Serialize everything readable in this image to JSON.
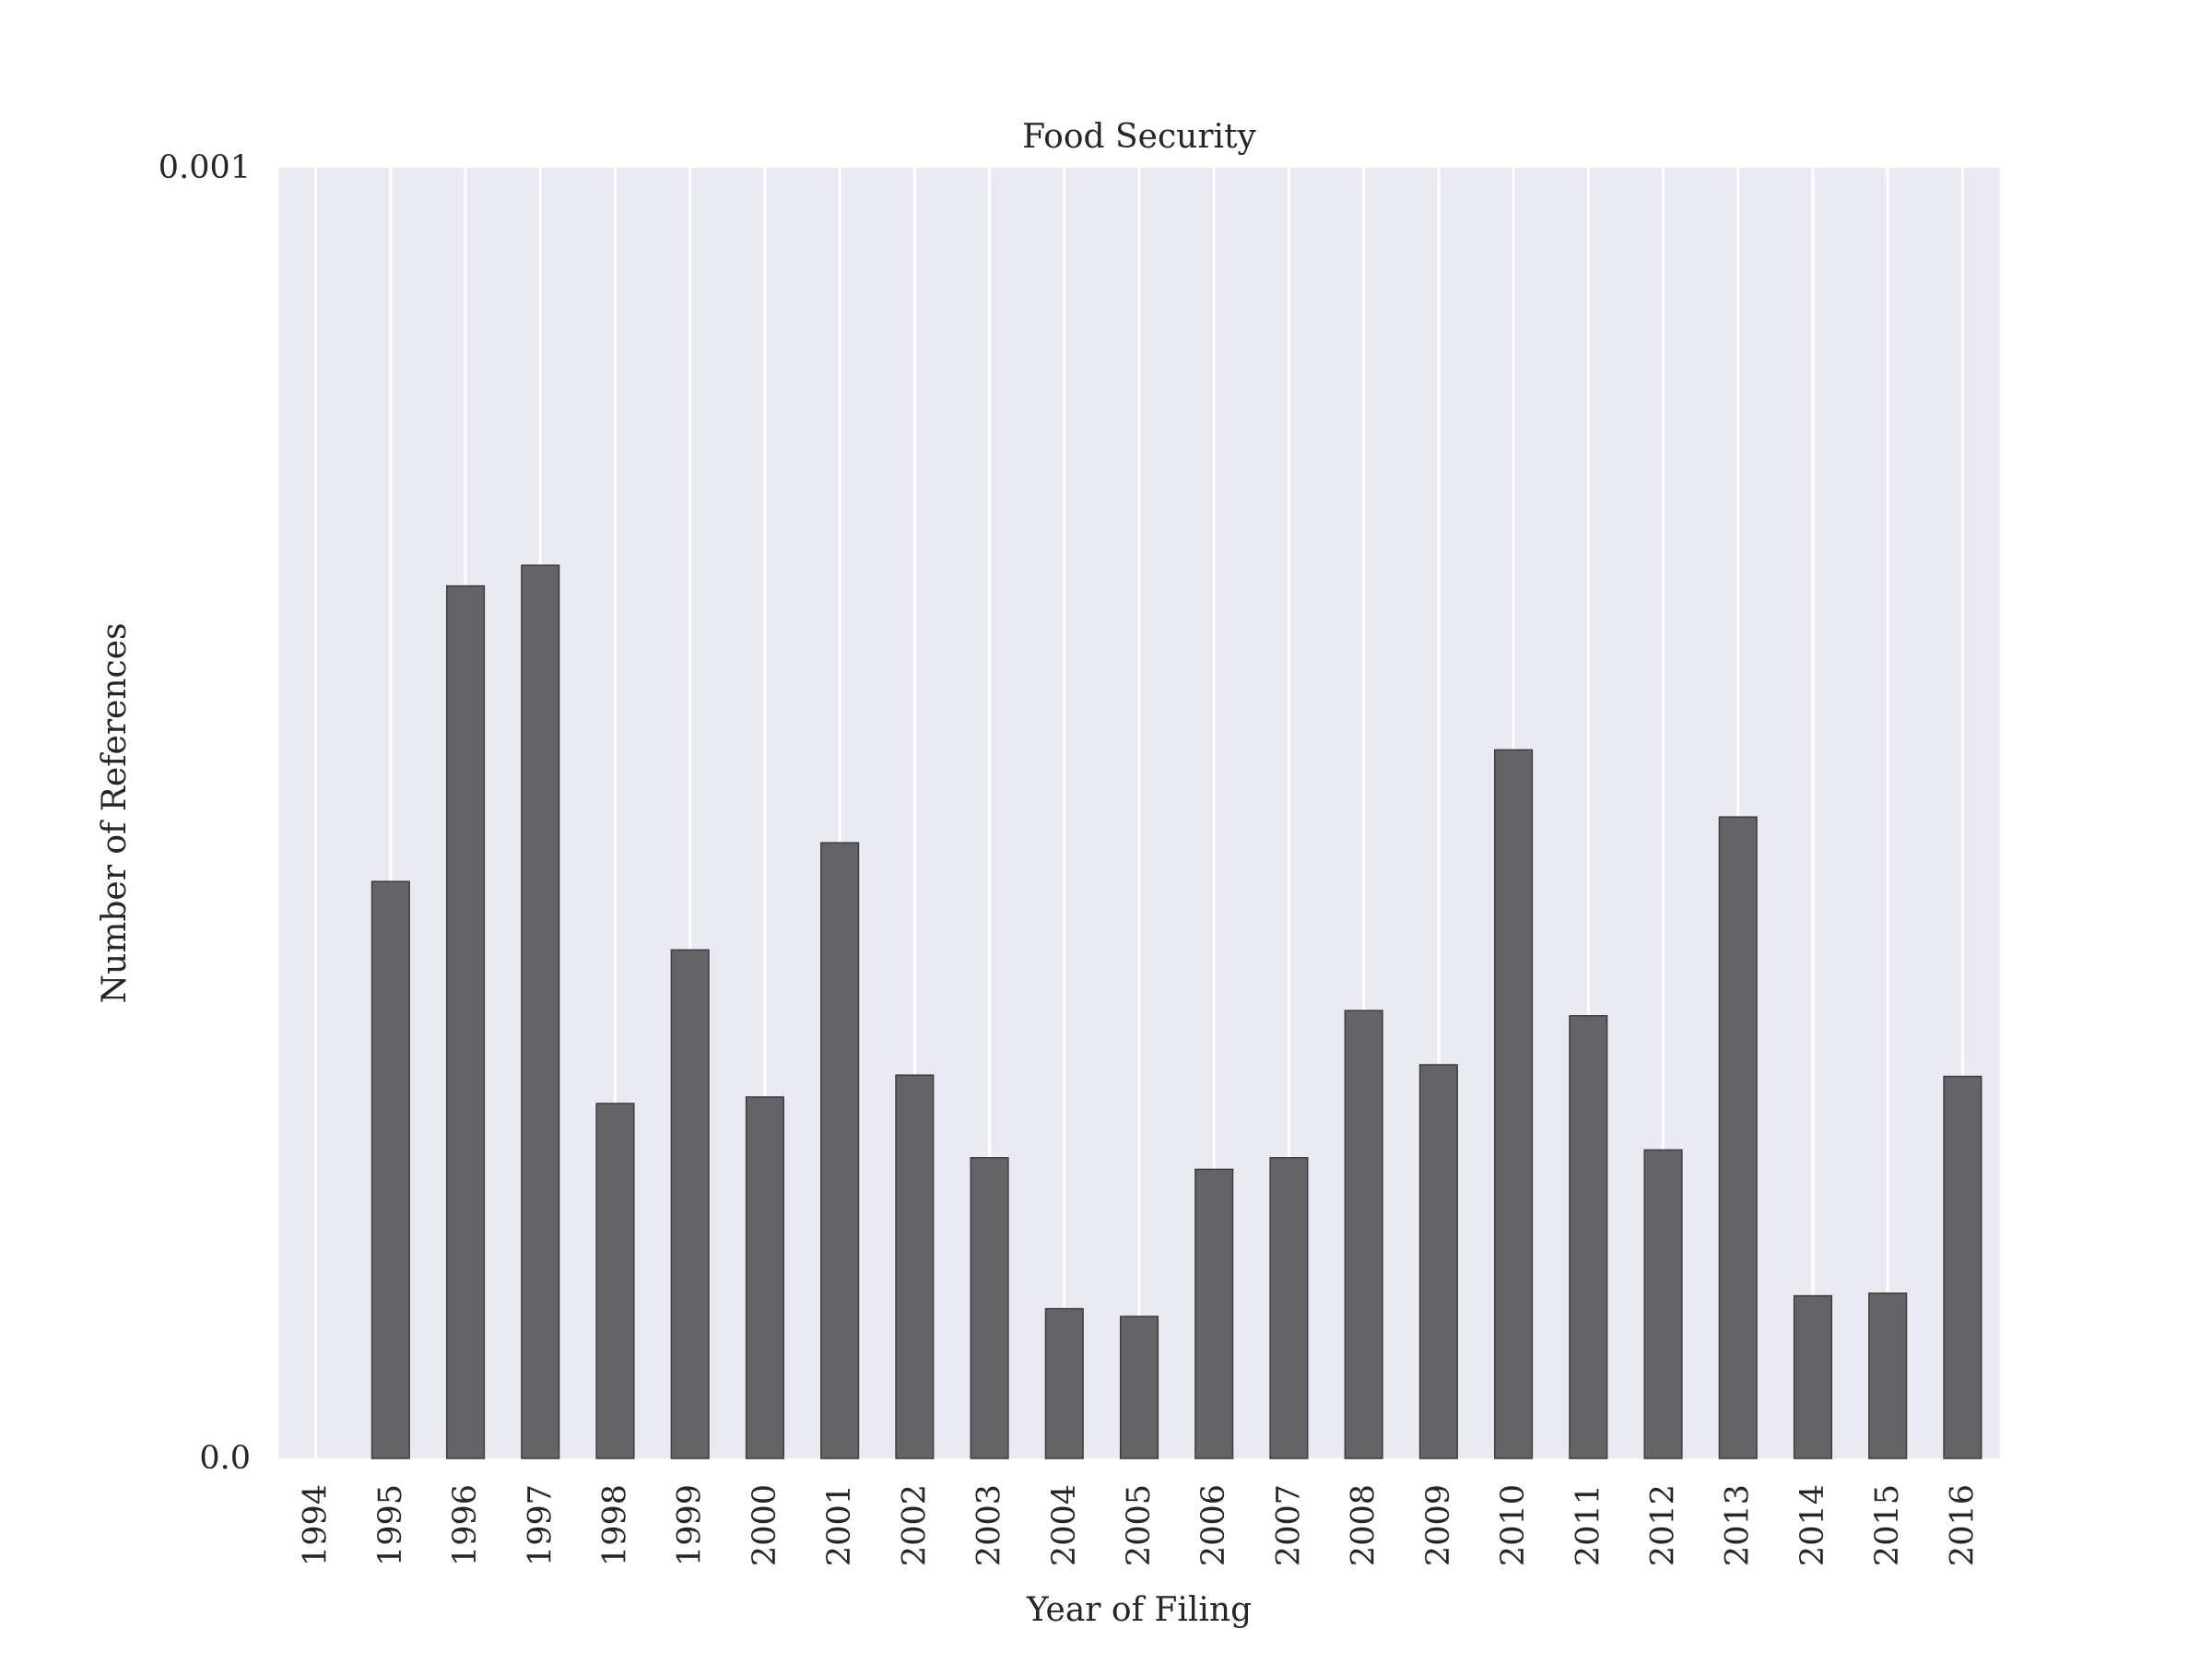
{
  "chart_data": {
    "type": "bar",
    "title": "Food Security",
    "xlabel": "Year of Filing",
    "ylabel": "Number of References",
    "categories": [
      "1994",
      "1995",
      "1996",
      "1997",
      "1998",
      "1999",
      "2000",
      "2001",
      "2002",
      "2003",
      "2004",
      "2005",
      "2006",
      "2007",
      "2008",
      "2009",
      "2010",
      "2011",
      "2012",
      "2013",
      "2014",
      "2015",
      "2016"
    ],
    "values": [
      0.0,
      0.000447,
      0.000676,
      0.000692,
      0.000275,
      0.000394,
      0.00028,
      0.000477,
      0.000297,
      0.000233,
      0.000116,
      0.00011,
      0.000224,
      0.000233,
      0.000347,
      0.000305,
      0.000549,
      0.000343,
      0.000239,
      0.000497,
      0.000126,
      0.000128,
      0.000296
    ],
    "ylim": [
      0.0,
      0.001
    ],
    "yticks": [
      "0.0",
      "0.001"
    ],
    "grid": "vertical",
    "legend": "none",
    "colors": {
      "background": "#eaeaf2",
      "bar": "#646466",
      "grid": "#ffffff"
    }
  }
}
